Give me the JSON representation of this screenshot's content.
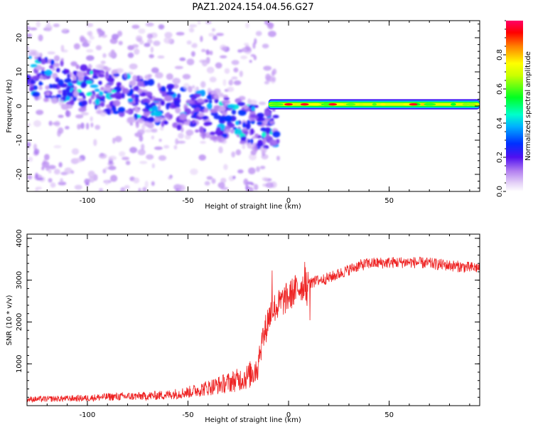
{
  "figure": {
    "title": "PAZ1.2024.154.04.56.G27"
  },
  "colors": {
    "snr_line": "#ee2222",
    "frame": "#000000",
    "colormap": [
      "#ffffff",
      "#e4d0f7",
      "#b27ff0",
      "#6a1fe8",
      "#3a00ff",
      "#0055ff",
      "#00e6e6",
      "#00ff33",
      "#ffff00",
      "#ff8000",
      "#ff0000",
      "#ff0066"
    ]
  },
  "chart_data": [
    {
      "type": "heatmap",
      "name_hint": "spectrogram",
      "xlabel": "Height of straight line (km)",
      "ylabel": "Frequency (Hz)",
      "xlim": [
        -130,
        95
      ],
      "ylim": [
        -25,
        25
      ],
      "xticks": [
        -100,
        -50,
        0,
        50
      ],
      "xtick_labels": [
        "-100",
        "-50",
        "0",
        "50"
      ],
      "yticks": [
        -20,
        -10,
        0,
        10,
        20
      ],
      "ytick_labels": [
        "-20",
        "-10",
        "0",
        "10",
        "20"
      ],
      "colorbar": {
        "label": "Normalized spectral amplitude",
        "range": [
          0,
          1
        ],
        "ticks": [
          0.0,
          0.2,
          0.4,
          0.6,
          0.8
        ],
        "tick_labels": [
          "0.0",
          "0.2",
          "0.4",
          "0.6",
          "0.8"
        ]
      },
      "band": {
        "x_start": -10,
        "x_end": 95,
        "center_freq": 0.5,
        "half_width": 1.5,
        "peak_x": [
          0,
          8,
          22,
          62
        ],
        "peak_amplitude": 0.95
      }
    },
    {
      "type": "line",
      "name_hint": "snr",
      "xlabel": "Height of straight line (km)",
      "ylabel": "SNR (10 * v/v)",
      "xlim": [
        -130,
        95
      ],
      "ylim": [
        0,
        4100
      ],
      "xticks": [
        -100,
        -50,
        0,
        50
      ],
      "xtick_labels": [
        "-100",
        "-50",
        "0",
        "50"
      ],
      "yticks": [
        1000,
        2000,
        3000,
        4000
      ],
      "ytick_labels": [
        "1000",
        "2000",
        "3000",
        "4000"
      ],
      "series": [
        {
          "x": [
            -130,
            -120,
            -110,
            -100,
            -90,
            -80,
            -70,
            -60,
            -50,
            -40,
            -30,
            -25,
            -20,
            -16,
            -13,
            -12,
            -11,
            -10,
            -8,
            -5,
            -3,
            0,
            3,
            6,
            10,
            12,
            15,
            20,
            25,
            30,
            35,
            40,
            50,
            60,
            70,
            80,
            90,
            95
          ],
          "y": [
            150,
            160,
            170,
            180,
            210,
            220,
            230,
            260,
            320,
            430,
            550,
            620,
            700,
            900,
            1600,
            1700,
            1900,
            2100,
            2300,
            2400,
            2500,
            2600,
            2750,
            2850,
            2900,
            2950,
            3000,
            3050,
            3150,
            3250,
            3350,
            3400,
            3420,
            3430,
            3400,
            3350,
            3300,
            3300
          ]
        }
      ]
    }
  ]
}
